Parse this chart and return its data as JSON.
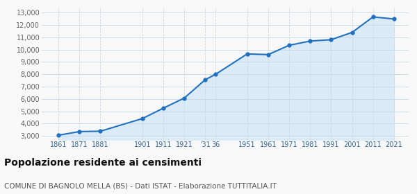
{
  "years": [
    1861,
    1871,
    1881,
    1901,
    1911,
    1921,
    1931,
    1936,
    1951,
    1961,
    1971,
    1981,
    1991,
    2001,
    2011,
    2021
  ],
  "values": [
    3063,
    3358,
    3388,
    4412,
    5258,
    6075,
    7567,
    8012,
    9657,
    9601,
    10356,
    10700,
    10810,
    11400,
    12660,
    12490
  ],
  "yticks": [
    3000,
    4000,
    5000,
    6000,
    7000,
    8000,
    9000,
    10000,
    11000,
    12000,
    13000
  ],
  "line_color": "#2070c0",
  "fill_color": "#daeaf7",
  "marker_color": "#2070c0",
  "grid_color": "#c8d8e8",
  "bg_color": "#f8f8f8",
  "title": "Popolazione residente ai censimenti",
  "subtitle": "COMUNE DI BAGNOLO MELLA (BS) - Dati ISTAT - Elaborazione TUTTITALIA.IT",
  "title_fontsize": 10,
  "subtitle_fontsize": 7.5,
  "ylim": [
    2700,
    13400
  ],
  "xlim": [
    1853,
    2028
  ],
  "fill_bottom": 2700
}
